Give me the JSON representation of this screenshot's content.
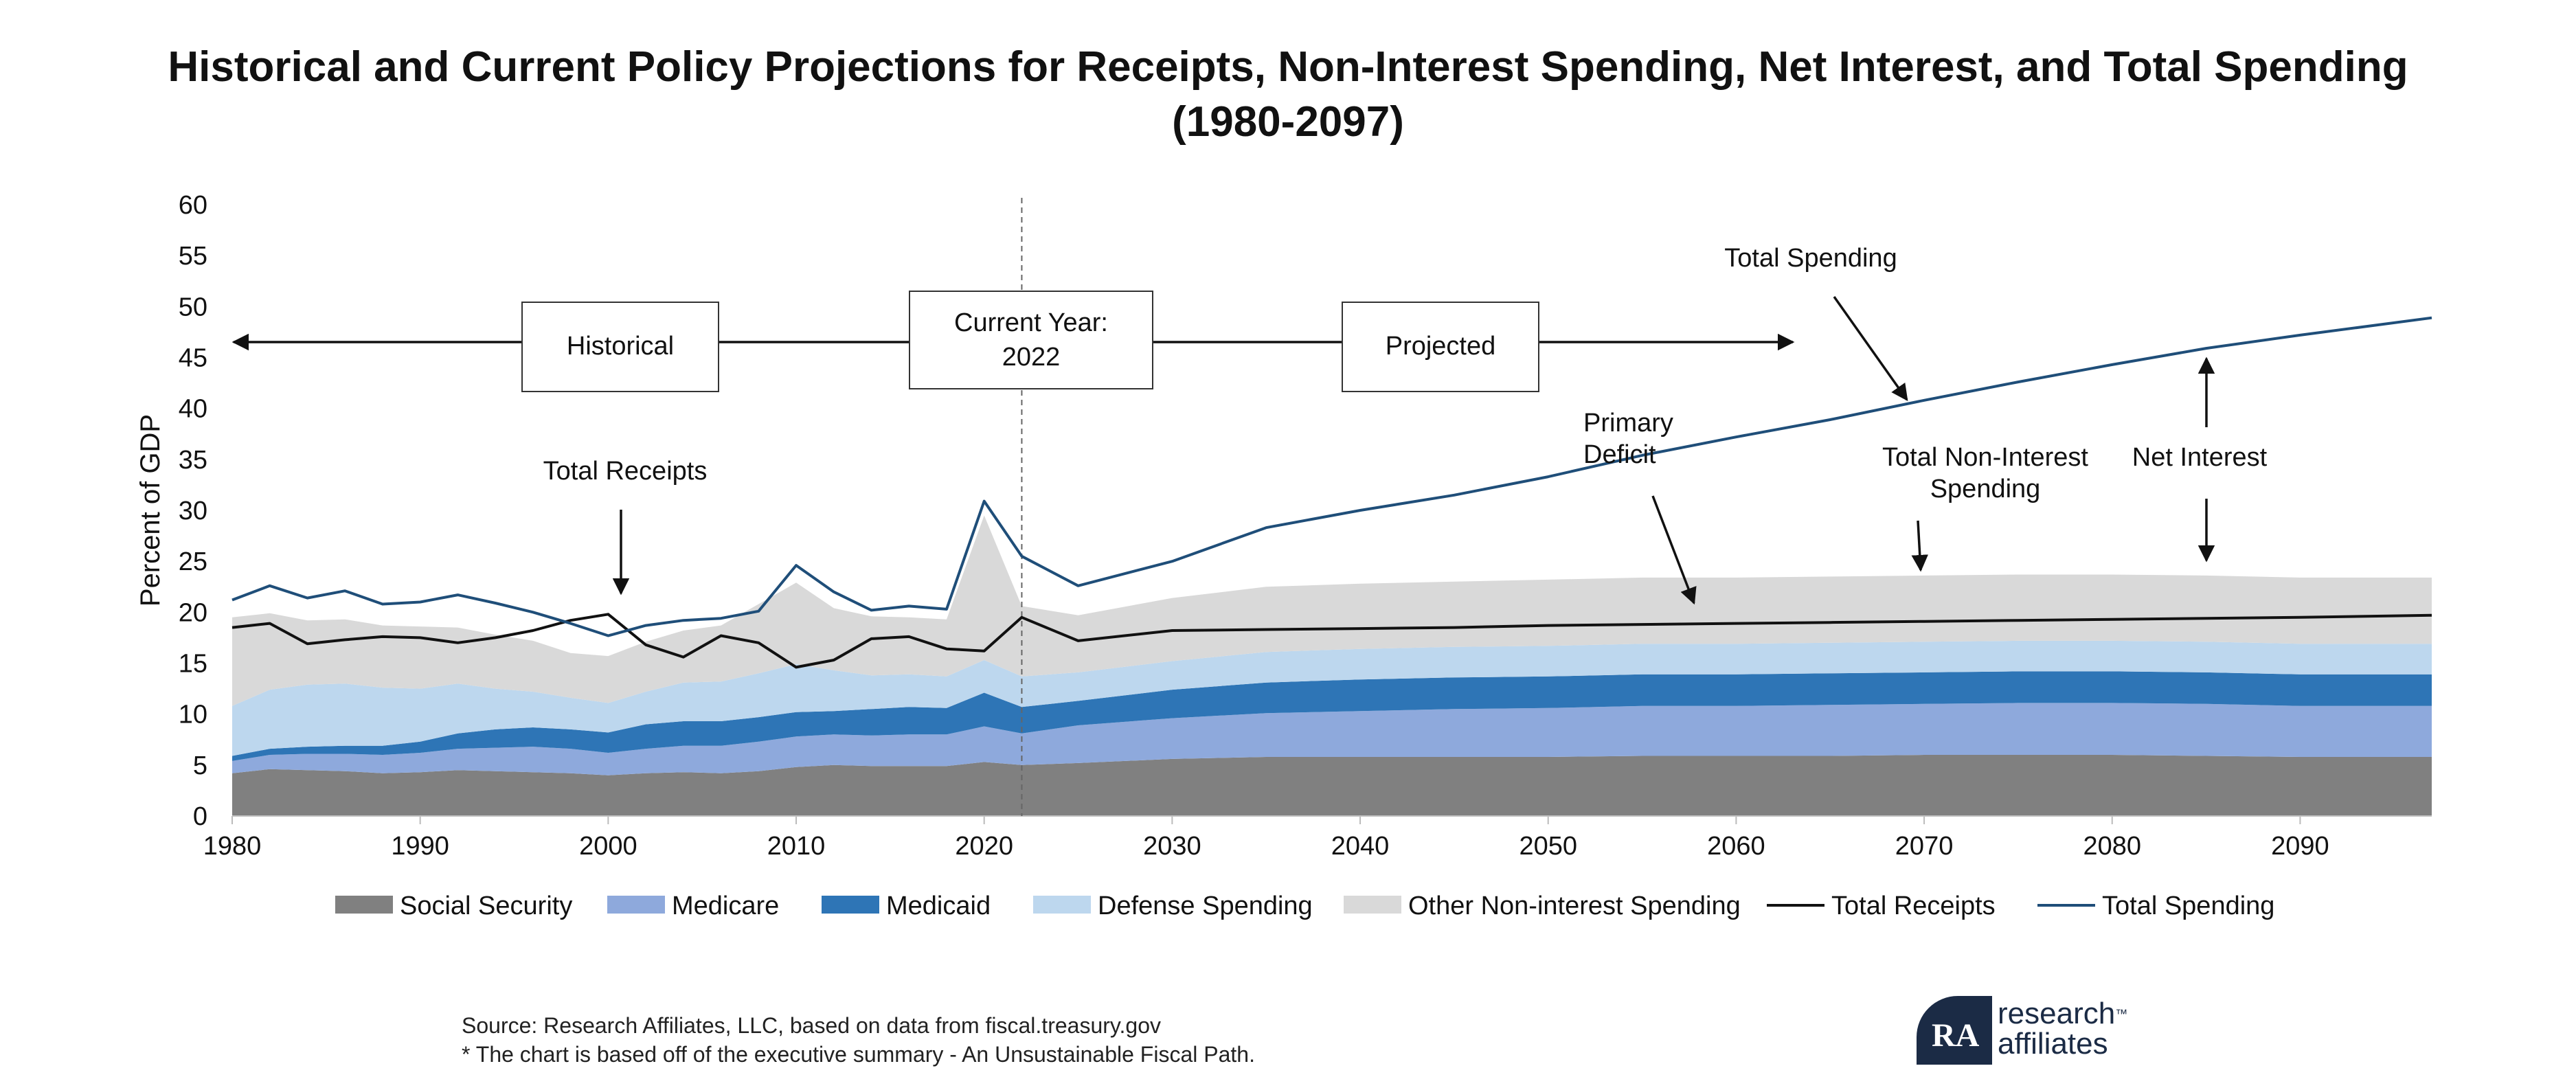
{
  "chart_data": {
    "type": "area",
    "title": "Historical and Current Policy Projections for Receipts, Non-Interest Spending, Net Interest, and Total Spending (1980-2097)",
    "title_line1": "Historical and Current Policy Projections for Receipts, Non-Interest Spending, Net Interest, and Total Spending",
    "title_line2": "(1980-2097)",
    "xlabel": "",
    "ylabel": "Percent of GDP",
    "xlim": [
      1980,
      2097
    ],
    "ylim": [
      0,
      60
    ],
    "x_ticks": [
      1980,
      1990,
      2000,
      2010,
      2020,
      2030,
      2040,
      2050,
      2060,
      2070,
      2080,
      2090
    ],
    "y_ticks": [
      0,
      5,
      10,
      15,
      20,
      25,
      30,
      35,
      40,
      45,
      50,
      55,
      60
    ],
    "current_year": 2022,
    "legend_position": "bottom",
    "years": [
      1980,
      1982,
      1984,
      1986,
      1988,
      1990,
      1992,
      1994,
      1996,
      1998,
      2000,
      2002,
      2004,
      2006,
      2008,
      2010,
      2012,
      2014,
      2016,
      2018,
      2020,
      2022,
      2025,
      2030,
      2035,
      2040,
      2045,
      2050,
      2055,
      2060,
      2065,
      2070,
      2075,
      2080,
      2085,
      2090,
      2097
    ],
    "stack_series": [
      {
        "name": "Social Security",
        "color": "#808080",
        "values": [
          4.2,
          4.6,
          4.5,
          4.4,
          4.2,
          4.3,
          4.5,
          4.4,
          4.3,
          4.2,
          4.0,
          4.2,
          4.3,
          4.2,
          4.4,
          4.8,
          5.0,
          4.9,
          4.9,
          4.9,
          5.3,
          5.0,
          5.2,
          5.6,
          5.8,
          5.8,
          5.8,
          5.8,
          5.9,
          5.9,
          5.9,
          6.0,
          6.0,
          6.0,
          5.9,
          5.8,
          5.8
        ]
      },
      {
        "name": "Medicare",
        "color": "#8ea9dc",
        "values": [
          1.2,
          1.4,
          1.6,
          1.7,
          1.8,
          1.9,
          2.1,
          2.3,
          2.5,
          2.4,
          2.2,
          2.4,
          2.6,
          2.7,
          2.9,
          3.0,
          3.0,
          3.0,
          3.1,
          3.1,
          3.5,
          3.1,
          3.7,
          4.0,
          4.3,
          4.5,
          4.7,
          4.8,
          4.9,
          4.9,
          5.0,
          5.0,
          5.1,
          5.1,
          5.1,
          5.0,
          5.0
        ]
      },
      {
        "name": "Medicaid",
        "color": "#2e75b6",
        "values": [
          0.5,
          0.6,
          0.7,
          0.8,
          0.9,
          1.1,
          1.5,
          1.8,
          1.9,
          1.9,
          2.0,
          2.4,
          2.4,
          2.4,
          2.4,
          2.4,
          2.3,
          2.6,
          2.7,
          2.6,
          3.3,
          2.6,
          2.4,
          2.8,
          3.0,
          3.1,
          3.1,
          3.1,
          3.1,
          3.1,
          3.1,
          3.1,
          3.1,
          3.1,
          3.1,
          3.1,
          3.1
        ]
      },
      {
        "name": "Defense Spending",
        "color": "#bdd7ee",
        "values": [
          4.9,
          5.8,
          6.1,
          6.1,
          5.7,
          5.2,
          4.9,
          4.0,
          3.5,
          3.1,
          2.9,
          3.2,
          3.8,
          3.9,
          4.3,
          4.7,
          4.0,
          3.3,
          3.2,
          3.1,
          3.2,
          3.0,
          2.8,
          2.8,
          3.0,
          3.0,
          3.0,
          3.0,
          3.0,
          3.0,
          3.0,
          3.0,
          3.0,
          3.0,
          3.0,
          3.0,
          3.0
        ]
      },
      {
        "name": "Other Non-interest Spending",
        "color": "#d9d9d9",
        "values": [
          8.7,
          7.5,
          6.3,
          6.3,
          6.1,
          6.1,
          5.5,
          5.3,
          5.0,
          4.4,
          4.6,
          4.9,
          5.1,
          5.5,
          6.8,
          8.0,
          6.1,
          5.8,
          5.6,
          5.6,
          14.2,
          6.9,
          5.6,
          6.2,
          6.4,
          6.4,
          6.4,
          6.5,
          6.5,
          6.5,
          6.5,
          6.5,
          6.5,
          6.5,
          6.5,
          6.5,
          6.5
        ]
      }
    ],
    "line_series": [
      {
        "name": "Total Receipts",
        "color": "#111111",
        "values": [
          18.5,
          18.9,
          16.9,
          17.3,
          17.6,
          17.5,
          17.0,
          17.5,
          18.2,
          19.2,
          19.8,
          16.8,
          15.6,
          17.7,
          17.0,
          14.6,
          15.3,
          17.4,
          17.6,
          16.4,
          16.2,
          19.5,
          17.2,
          18.2,
          18.3,
          18.4,
          18.5,
          18.7,
          18.8,
          18.9,
          19.0,
          19.1,
          19.2,
          19.3,
          19.4,
          19.5,
          19.7
        ]
      },
      {
        "name": "Total Spending",
        "color": "#1f4e79",
        "values": [
          21.2,
          22.6,
          21.4,
          22.1,
          20.8,
          21.0,
          21.7,
          20.9,
          20.0,
          18.9,
          17.7,
          18.7,
          19.2,
          19.4,
          20.1,
          24.6,
          22.0,
          20.2,
          20.6,
          20.3,
          30.9,
          25.5,
          22.6,
          25.0,
          28.3,
          30.0,
          31.5,
          33.3,
          35.4,
          37.2,
          38.9,
          40.8,
          42.6,
          44.3,
          45.9,
          47.2,
          48.9
        ]
      }
    ],
    "annotations": {
      "historical": "Historical",
      "current_year_line1": "Current Year:",
      "current_year_line2": "2022",
      "projected": "Projected",
      "total_spending": "Total Spending",
      "total_receipts": "Total Receipts",
      "primary_deficit_line1": "Primary",
      "primary_deficit_line2": "Deficit",
      "total_non_interest_line1": "Total Non-Interest",
      "total_non_interest_line2": "Spending",
      "net_interest": "Net Interest"
    }
  },
  "footer": {
    "source_line1": "Source: Research Affiliates, LLC, based on data from fiscal.treasury.gov",
    "source_line2": "* The chart is based off of the executive summary - An Unsustainable Fiscal Path."
  },
  "logo": {
    "glyph": "RA",
    "line1": "research",
    "line2": "affiliates",
    "tm": "™"
  }
}
